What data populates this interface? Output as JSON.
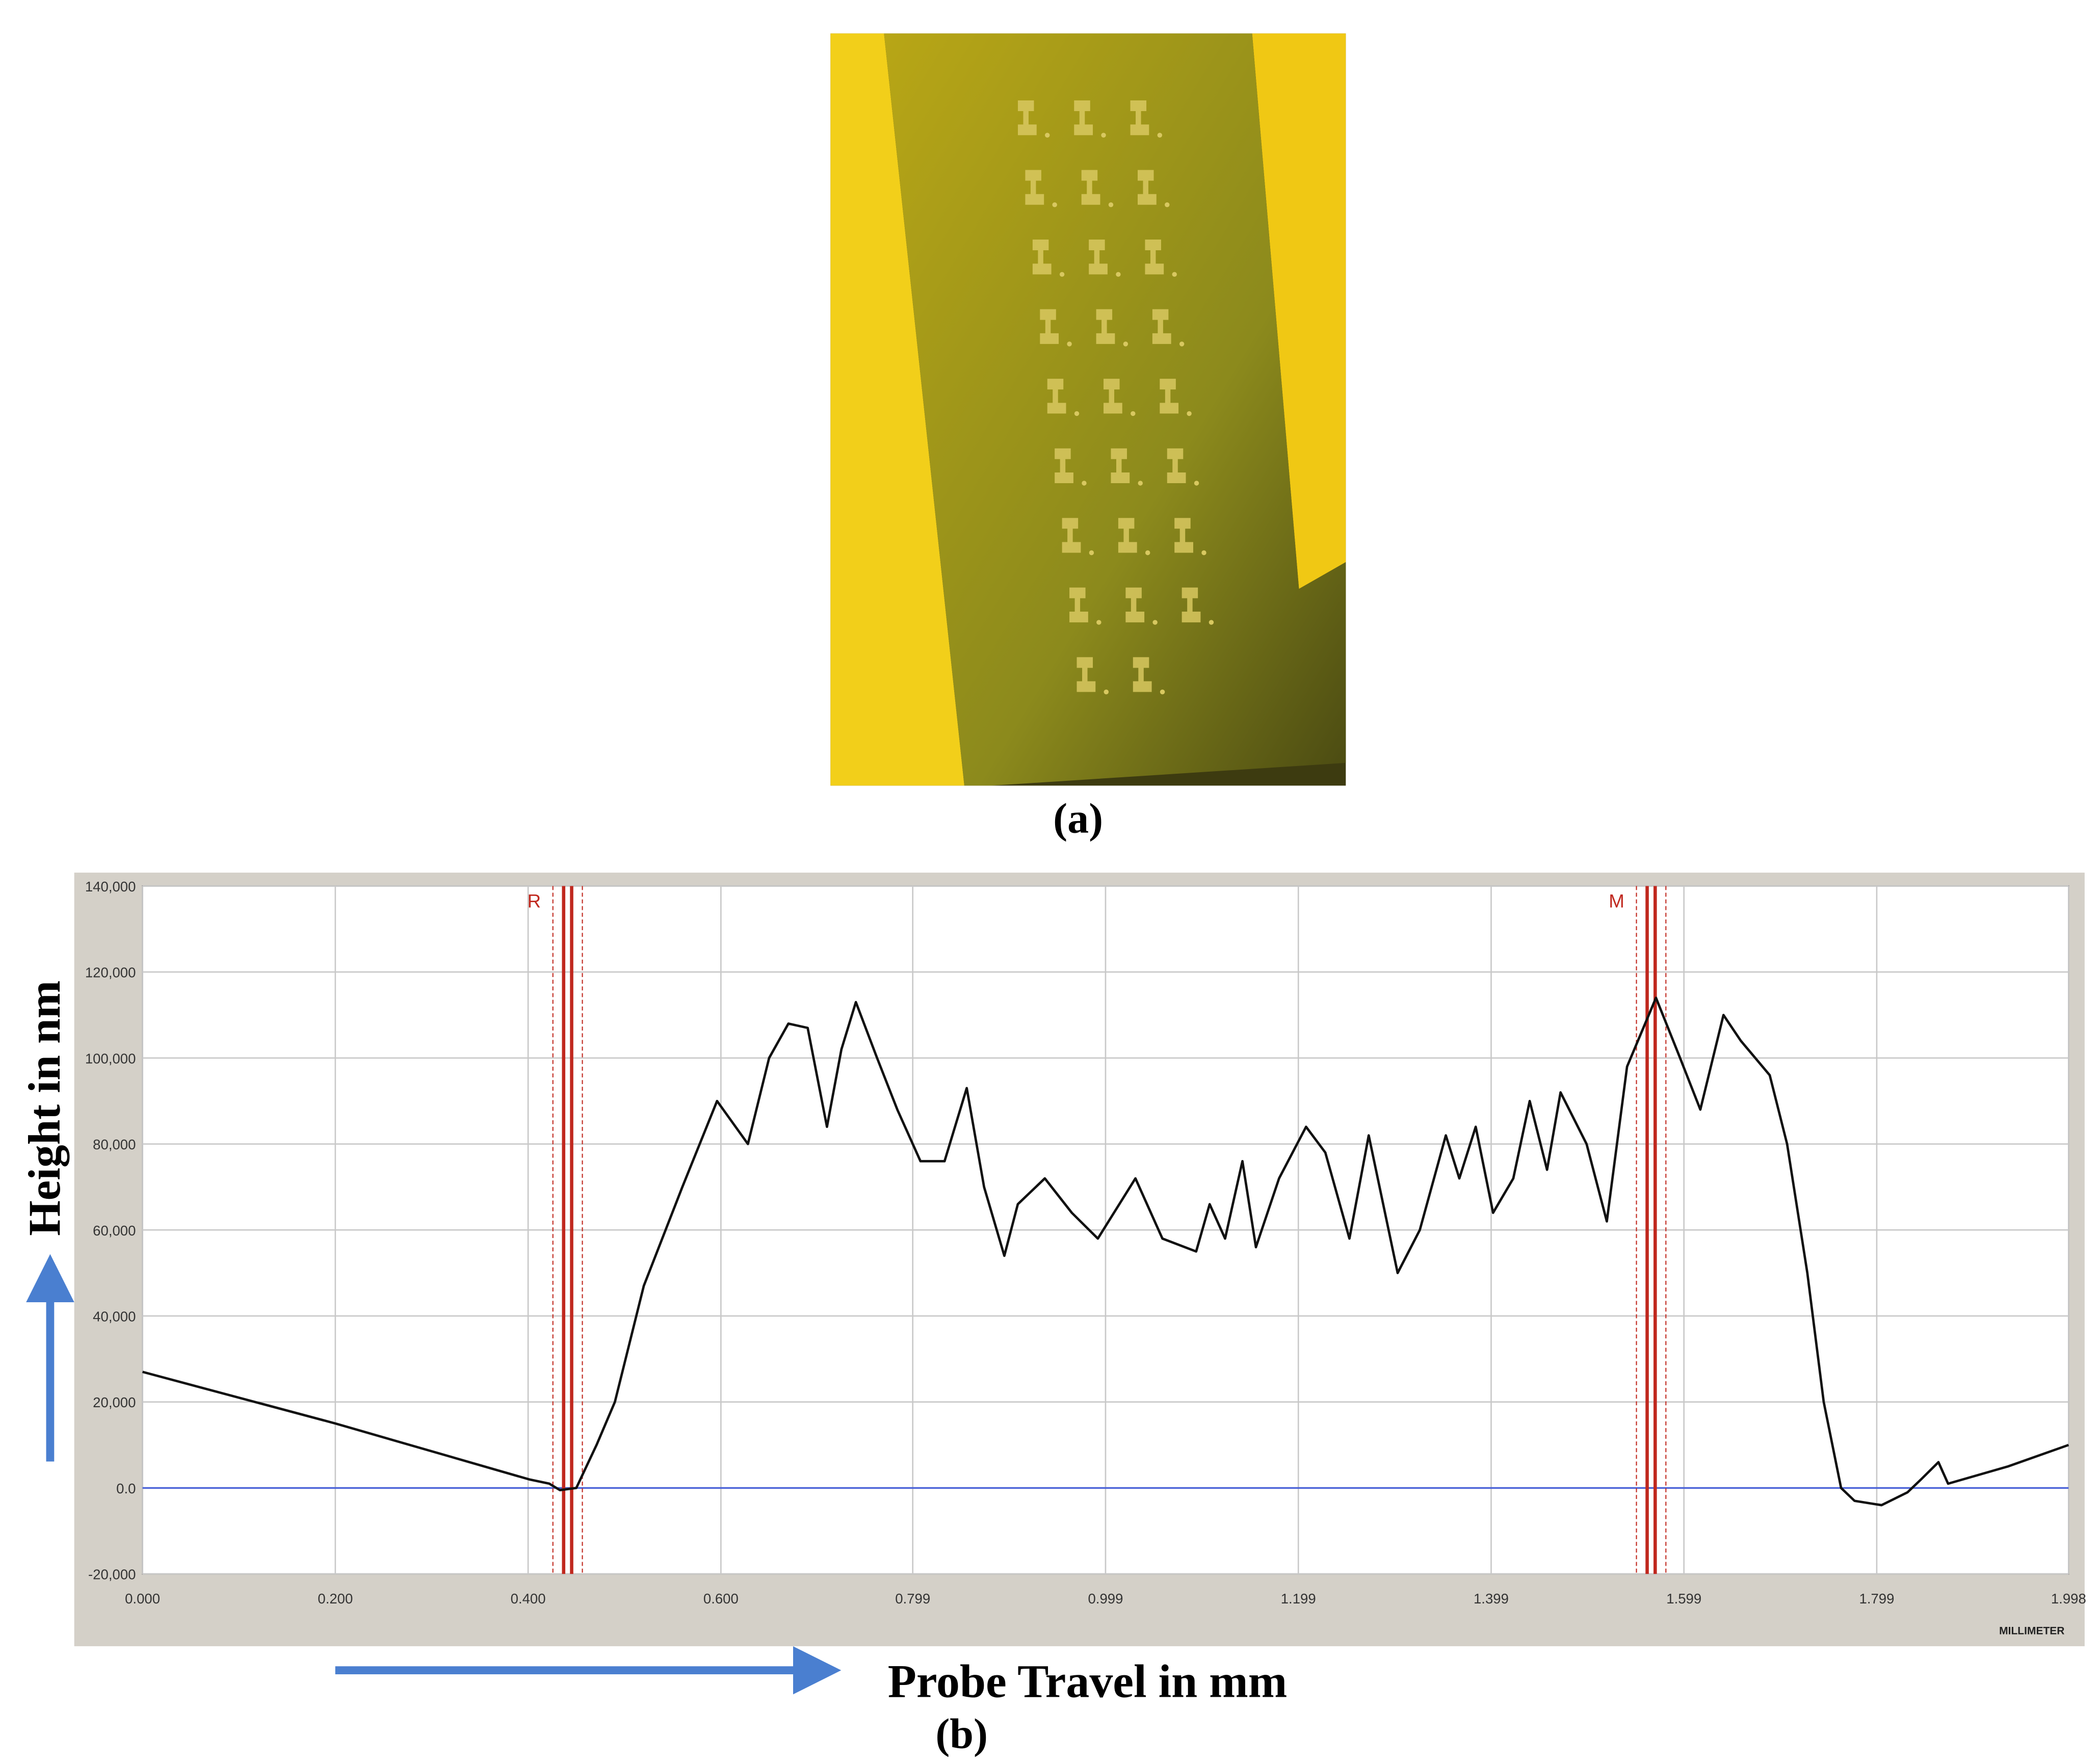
{
  "panels": {
    "a_label": "(a)",
    "b_label": "(b)"
  },
  "chart_data": {
    "type": "line",
    "ylabel": "Height in nm",
    "xlabel": "Probe Travel in mm",
    "x_unit": "MILLIMETER",
    "x": [
      0,
      0.2,
      0.401,
      0.422,
      0.433,
      0.45,
      0.471,
      0.49,
      0.52,
      0.56,
      0.596,
      0.628,
      0.65,
      0.67,
      0.69,
      0.71,
      0.725,
      0.74,
      0.762,
      0.783,
      0.807,
      0.832,
      0.855,
      0.873,
      0.894,
      0.908,
      0.936,
      0.964,
      0.991,
      1.03,
      1.058,
      1.093,
      1.107,
      1.123,
      1.141,
      1.155,
      1.179,
      1.207,
      1.227,
      1.252,
      1.272,
      1.302,
      1.325,
      1.352,
      1.366,
      1.383,
      1.401,
      1.422,
      1.439,
      1.457,
      1.471,
      1.498,
      1.519,
      1.54,
      1.57,
      1.595,
      1.616,
      1.64,
      1.658,
      1.688,
      1.706,
      1.727,
      1.744,
      1.762,
      1.776,
      1.804,
      1.831,
      1.845,
      1.863,
      1.873,
      1.935,
      1.998
    ],
    "values": [
      27000,
      15000,
      2000,
      1000,
      -500,
      0,
      10000,
      20000,
      47000,
      70000,
      90000,
      80000,
      100000,
      108000,
      107000,
      84000,
      102000,
      113000,
      100000,
      88000,
      76000,
      76000,
      93000,
      70000,
      54000,
      66000,
      72000,
      64000,
      58000,
      72000,
      58000,
      55000,
      66000,
      58000,
      76000,
      56000,
      72000,
      84000,
      78000,
      58000,
      82000,
      50000,
      60000,
      82000,
      72000,
      84000,
      64000,
      72000,
      90000,
      74000,
      92000,
      80000,
      62000,
      98000,
      114000,
      100000,
      88000,
      110000,
      104000,
      96000,
      80000,
      50000,
      20000,
      0,
      -3000,
      -4000,
      -1000,
      2000,
      6000,
      1000,
      5000,
      10000
    ],
    "color": "#111111",
    "xlim": [
      0,
      1.998
    ],
    "xticks": [
      {
        "value": 0,
        "label": "0.000"
      },
      {
        "value": 0.2,
        "label": "0.200"
      },
      {
        "value": 0.4,
        "label": "0.400"
      },
      {
        "value": 0.6,
        "label": "0.600"
      },
      {
        "value": 0.799,
        "label": "0.799"
      },
      {
        "value": 0.999,
        "label": "0.999"
      },
      {
        "value": 1.199,
        "label": "1.199"
      },
      {
        "value": 1.399,
        "label": "1.399"
      },
      {
        "value": 1.599,
        "label": "1.599"
      },
      {
        "value": 1.799,
        "label": "1.799"
      },
      {
        "value": 1.998,
        "label": "1.998"
      }
    ],
    "ylim": [
      -20000,
      140000
    ],
    "yticks": [
      {
        "value": -20000,
        "label": "-20,000"
      },
      {
        "value": 0,
        "label": "0.0"
      },
      {
        "value": 20000,
        "label": "20,000"
      },
      {
        "value": 40000,
        "label": "40,000"
      },
      {
        "value": 60000,
        "label": "60,000"
      },
      {
        "value": 80000,
        "label": "80,000"
      },
      {
        "value": 100000,
        "label": "100,000"
      },
      {
        "value": 120000,
        "label": "120,000"
      },
      {
        "value": 140000,
        "label": "140,000"
      }
    ],
    "grid": true,
    "reference_line": {
      "y": 0,
      "color": "#4a62d8"
    },
    "markers": [
      {
        "label": "R",
        "x": 0.441
      },
      {
        "label": "M",
        "x": 1.565
      }
    ],
    "marker_color": "#c0281e"
  }
}
